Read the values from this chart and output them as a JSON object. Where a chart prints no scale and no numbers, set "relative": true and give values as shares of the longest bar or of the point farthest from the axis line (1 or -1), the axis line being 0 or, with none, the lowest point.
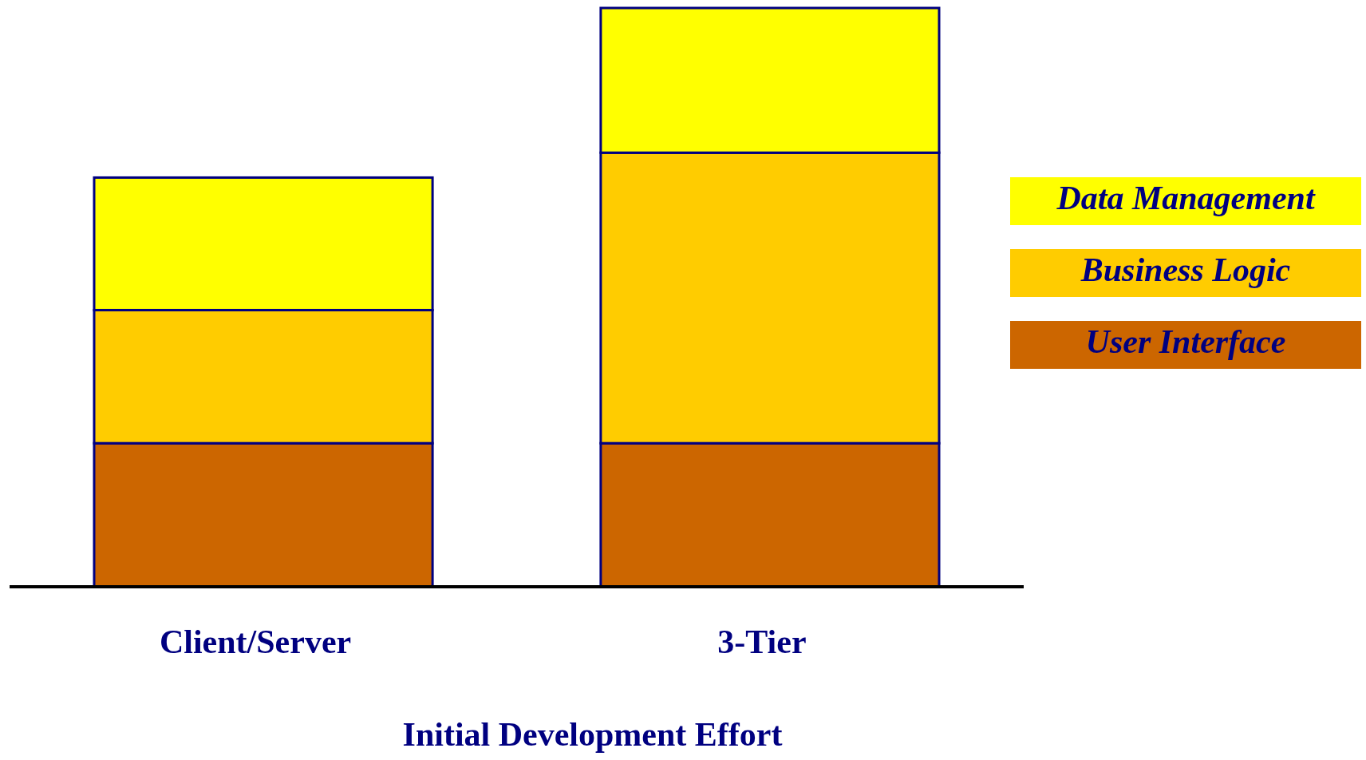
{
  "chart_data": {
    "type": "bar",
    "stacked": true,
    "relative": true,
    "xlabel": "Initial Development Effort",
    "categories": [
      "Client/Server",
      "3-Tier"
    ],
    "legend": "right",
    "series": [
      {
        "name": "User Interface",
        "color": "#cc6600",
        "values": [
          0.248,
          0.248
        ]
      },
      {
        "name": "Business Logic",
        "color": "#ffcc00",
        "values": [
          0.23,
          0.502
        ]
      },
      {
        "name": "Data Management",
        "color": "#ffff00",
        "values": [
          0.229,
          0.25
        ]
      }
    ]
  }
}
